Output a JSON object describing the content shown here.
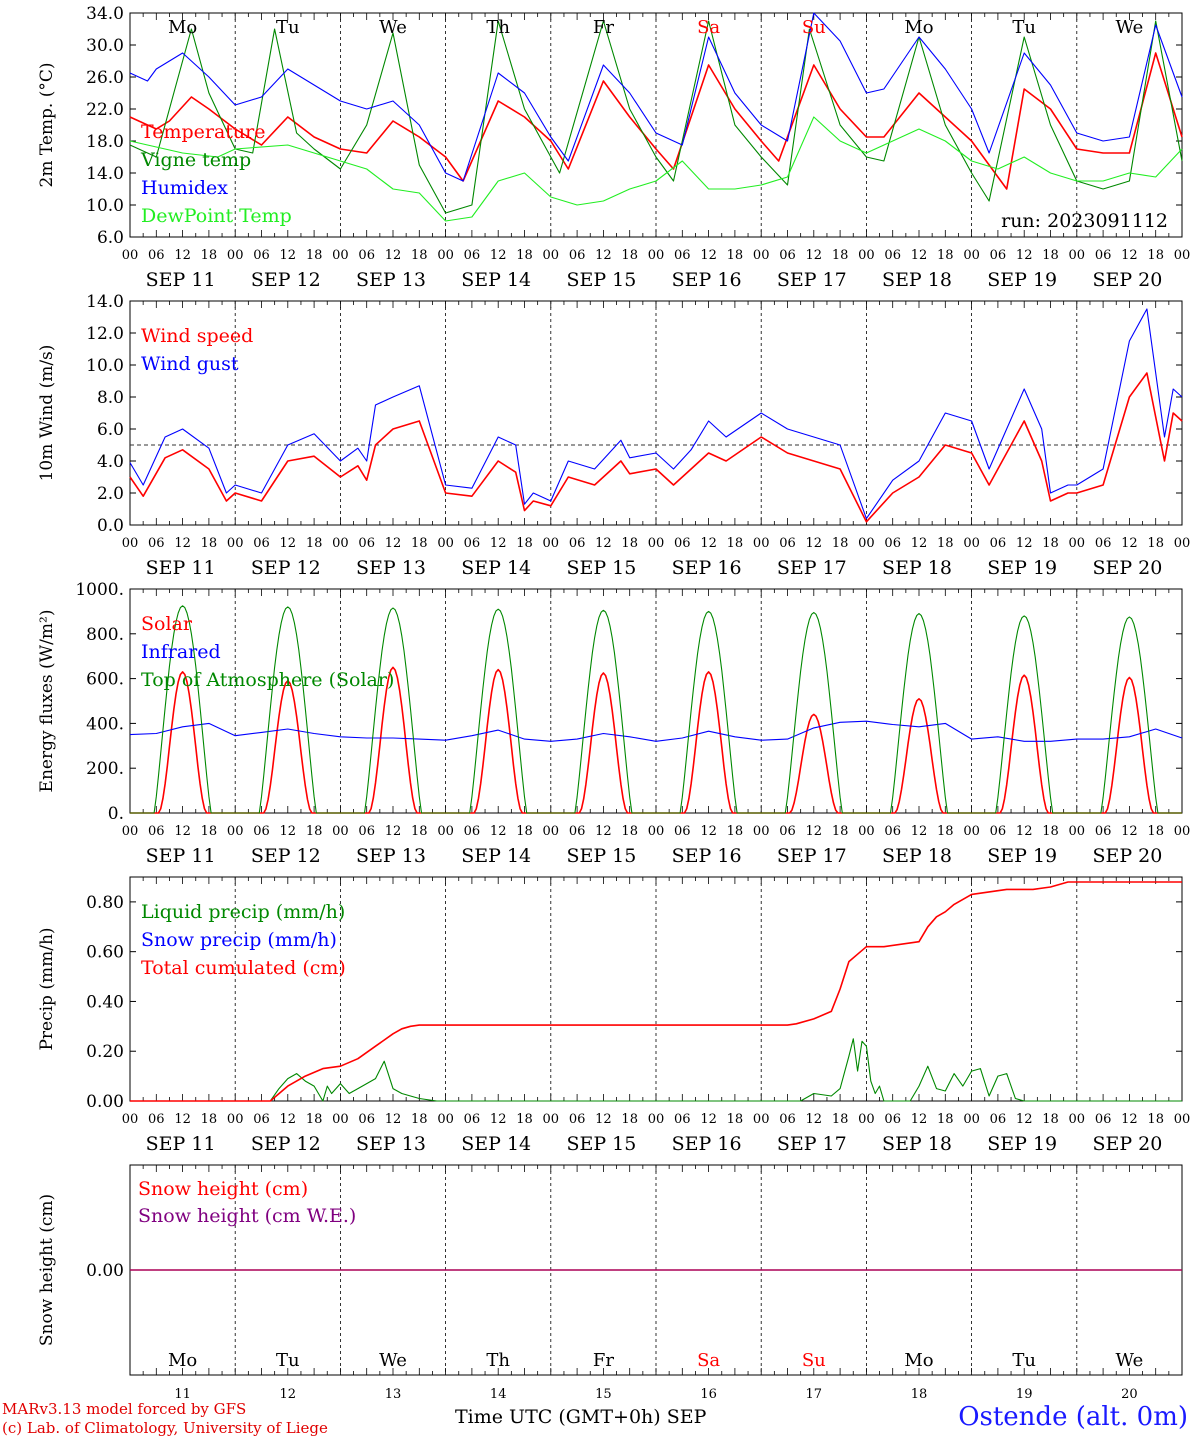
{
  "credits": {
    "line1": "MARv3.13 model forced by GFS",
    "line2": "(c) Lab. of Climatology, University of Liege"
  },
  "x_axis_title": "Time UTC (GMT+0h) SEP",
  "station": "Ostende (alt. 0m)",
  "run_label": "run: 2023091112",
  "days": [
    "11",
    "12",
    "13",
    "14",
    "15",
    "16",
    "17",
    "18",
    "19",
    "20"
  ],
  "weekdays": [
    "Mo",
    "Tu",
    "We",
    "Th",
    "Fr",
    "Sa",
    "Su",
    "Mo",
    "Tu",
    "We"
  ],
  "weekend_flags": [
    false,
    false,
    false,
    false,
    false,
    true,
    true,
    false,
    false,
    false
  ],
  "date_labels": [
    "SEP 11",
    "SEP 12",
    "SEP 13",
    "SEP 14",
    "SEP 15",
    "SEP 16",
    "SEP 17",
    "SEP 18",
    "SEP 19",
    "SEP 20"
  ],
  "hour_ticks": [
    "00",
    "06",
    "12",
    "18"
  ],
  "last_hour_tick": "00",
  "colors": {
    "red": "#ff0000",
    "green": "#008800",
    "blue": "#0000ff",
    "lightgreen": "#22ee22",
    "purple": "#800080",
    "weekend": "#ff0000"
  },
  "chart_data": [
    {
      "id": "temp",
      "type": "line",
      "ylabel": "2m Temp. (°C)",
      "ylim": [
        6.0,
        34.0
      ],
      "yticks": [
        "6.0",
        "10.0",
        "14.0",
        "18.0",
        "22.0",
        "26.0",
        "30.0",
        "34.0"
      ],
      "ytick_values": [
        6,
        10,
        14,
        18,
        22,
        26,
        30,
        34
      ],
      "x_unit": "hours since SEP 11 00 UTC",
      "legend": [
        "Temperature",
        "Vigne temp",
        "Humidex",
        "DewPoint Temp"
      ],
      "series": [
        {
          "name": "Temperature",
          "color": "red",
          "x": [
            0,
            6,
            9,
            14,
            18,
            24,
            30,
            36,
            42,
            48,
            54,
            60,
            66,
            72,
            76,
            84,
            90,
            96,
            100,
            108,
            114,
            120,
            124,
            132,
            138,
            144,
            148,
            156,
            162,
            168,
            172,
            180,
            186,
            192,
            200,
            204,
            210,
            216,
            222,
            228,
            234,
            240
          ],
          "y": [
            21,
            19.5,
            20.5,
            23.5,
            22,
            19.5,
            17.5,
            21,
            18.5,
            17,
            16.5,
            20.5,
            18.5,
            16,
            13,
            23,
            21,
            18,
            14.5,
            25.5,
            21,
            17,
            14.5,
            27.5,
            22,
            18,
            15.5,
            27.5,
            22,
            18.5,
            18.5,
            24,
            21,
            18,
            12,
            24.5,
            22,
            17,
            16.5,
            16.5,
            29,
            18.5
          ]
        },
        {
          "name": "Vigne temp",
          "color": "green",
          "x": [
            0,
            6,
            10,
            14,
            18,
            24,
            28,
            33,
            38,
            42,
            48,
            54,
            60,
            66,
            72,
            78,
            84,
            90,
            96,
            98,
            108,
            114,
            120,
            124,
            132,
            138,
            144,
            150,
            155,
            162,
            168,
            172,
            180,
            186,
            192,
            196,
            204,
            210,
            216,
            222,
            228,
            234,
            240
          ],
          "y": [
            17.5,
            16,
            24,
            32,
            24,
            17,
            16.5,
            32,
            19,
            17,
            14.5,
            20,
            31.5,
            15,
            9,
            10,
            33,
            22,
            16,
            14,
            33,
            22,
            16,
            13,
            33,
            20,
            16,
            12.5,
            32,
            20,
            16,
            15.5,
            31,
            20,
            14,
            10.5,
            31,
            20,
            13,
            12,
            13,
            33,
            15.5
          ]
        },
        {
          "name": "Humidex",
          "color": "blue",
          "x": [
            0,
            4,
            6,
            12,
            18,
            24,
            30,
            36,
            42,
            48,
            54,
            60,
            66,
            72,
            76,
            84,
            90,
            96,
            100,
            108,
            114,
            120,
            126,
            132,
            138,
            144,
            150,
            156,
            162,
            168,
            172,
            180,
            186,
            192,
            196,
            204,
            210,
            216,
            222,
            228,
            234,
            240
          ],
          "y": [
            26.5,
            25.5,
            27,
            29,
            26,
            22.5,
            23.5,
            27,
            25,
            23,
            22,
            23,
            20,
            14,
            13,
            26.5,
            24,
            18.5,
            15.5,
            27.5,
            24,
            19,
            17.5,
            31,
            24,
            20,
            18,
            34,
            30.5,
            24,
            24.5,
            31,
            27,
            22,
            16.5,
            29,
            25,
            19,
            18,
            18.5,
            32.5,
            23.5
          ]
        },
        {
          "name": "DewPoint Temp",
          "color": "lightgreen",
          "x": [
            0,
            12,
            20,
            24,
            36,
            42,
            48,
            54,
            60,
            66,
            72,
            78,
            84,
            90,
            96,
            102,
            108,
            114,
            120,
            126,
            132,
            138,
            144,
            150,
            156,
            162,
            168,
            174,
            180,
            186,
            192,
            198,
            204,
            210,
            216,
            222,
            228,
            234,
            240
          ],
          "y": [
            18,
            16.5,
            16,
            17,
            17.5,
            16.5,
            15.5,
            14.5,
            12,
            11.5,
            8,
            8.5,
            13,
            14,
            11,
            10,
            10.5,
            12,
            13,
            15.5,
            12,
            12,
            12.5,
            13.5,
            21,
            18,
            16.5,
            18,
            19.5,
            18,
            15.5,
            14.5,
            16,
            14,
            13,
            13,
            14,
            13.5,
            17
          ]
        }
      ]
    },
    {
      "id": "wind",
      "type": "line",
      "ylabel": "10m Wind (m/s)",
      "ylim": [
        0.0,
        14.0
      ],
      "yticks": [
        "0.0",
        "2.0",
        "4.0",
        "6.0",
        "8.0",
        "10.0",
        "12.0",
        "14.0"
      ],
      "ytick_values": [
        0,
        2,
        4,
        6,
        8,
        10,
        12,
        14
      ],
      "reference_line": 5,
      "x_unit": "hours since SEP 11 00 UTC",
      "legend": [
        "Wind speed",
        "Wind gust"
      ],
      "series": [
        {
          "name": "Wind speed",
          "color": "red",
          "x": [
            0,
            3,
            8,
            12,
            18,
            22,
            24,
            30,
            36,
            42,
            48,
            52,
            54,
            56,
            60,
            66,
            72,
            78,
            84,
            88,
            90,
            92,
            96,
            100,
            106,
            112,
            114,
            120,
            124,
            128,
            132,
            136,
            144,
            150,
            156,
            162,
            168,
            174,
            180,
            186,
            192,
            196,
            204,
            208,
            210,
            214,
            216,
            222,
            228,
            232,
            236,
            238,
            240
          ],
          "y": [
            3,
            1.8,
            4.2,
            4.7,
            3.5,
            1.5,
            2,
            1.5,
            4,
            4.3,
            3,
            3.7,
            2.8,
            5,
            6,
            6.5,
            2,
            1.8,
            4,
            3.3,
            0.9,
            1.5,
            1.2,
            3,
            2.5,
            4,
            3.2,
            3.5,
            2.5,
            3.5,
            4.5,
            4,
            5.5,
            4.5,
            4,
            3.5,
            0.2,
            2,
            3,
            5,
            4.5,
            2.5,
            6.5,
            4,
            1.5,
            2,
            2,
            2.5,
            8,
            9.5,
            4,
            7,
            6.5
          ]
        },
        {
          "name": "Wind gust",
          "color": "blue",
          "x": [
            0,
            3,
            8,
            12,
            18,
            22,
            24,
            30,
            36,
            42,
            48,
            52,
            54,
            56,
            60,
            66,
            72,
            78,
            84,
            88,
            90,
            92,
            96,
            100,
            106,
            112,
            114,
            120,
            124,
            128,
            132,
            136,
            144,
            150,
            156,
            162,
            168,
            174,
            180,
            186,
            192,
            196,
            204,
            208,
            210,
            214,
            216,
            222,
            228,
            232,
            236,
            238,
            240
          ],
          "y": [
            3.9,
            2.5,
            5.5,
            6,
            4.8,
            2,
            2.5,
            2,
            5,
            5.7,
            4,
            4.8,
            4,
            7.5,
            8,
            8.7,
            2.5,
            2.3,
            5.5,
            5,
            1.3,
            2,
            1.5,
            4,
            3.5,
            5.3,
            4.2,
            4.5,
            3.5,
            4.7,
            6.5,
            5.5,
            7,
            6,
            5.5,
            5,
            0.4,
            2.8,
            4,
            7,
            6.5,
            3.5,
            8.5,
            6,
            2,
            2.5,
            2.5,
            3.5,
            11.5,
            13.5,
            5.5,
            8.5,
            8
          ]
        }
      ]
    },
    {
      "id": "energy",
      "type": "line",
      "ylabel": "Energy fluxes (W/m²)",
      "ylim": [
        0,
        1000
      ],
      "yticks": [
        "0.",
        "200.",
        "400.",
        "600.",
        "800.",
        "1000."
      ],
      "ytick_values": [
        0,
        200,
        400,
        600,
        800,
        1000
      ],
      "x_unit": "hours since SEP 11 00 UTC",
      "legend": [
        "Solar",
        "Infrared",
        "Top of Atmosphere (Solar)"
      ],
      "series": [
        {
          "name": "Solar",
          "color": "red",
          "daily_peaks": [
            630,
            590,
            650,
            640,
            625,
            630,
            440,
            510,
            615,
            605
          ]
        },
        {
          "name": "Infrared",
          "color": "blue",
          "x": [
            0,
            6,
            12,
            18,
            24,
            30,
            36,
            42,
            48,
            54,
            60,
            66,
            72,
            78,
            84,
            90,
            96,
            102,
            108,
            114,
            120,
            126,
            132,
            138,
            144,
            150,
            156,
            162,
            168,
            174,
            180,
            186,
            192,
            198,
            204,
            210,
            216,
            222,
            228,
            234,
            240
          ],
          "y": [
            350,
            355,
            385,
            400,
            345,
            360,
            375,
            355,
            340,
            335,
            335,
            330,
            325,
            345,
            370,
            330,
            320,
            330,
            355,
            340,
            320,
            335,
            365,
            340,
            325,
            330,
            380,
            405,
            410,
            395,
            385,
            400,
            330,
            340,
            320,
            320,
            330,
            330,
            340,
            375,
            335
          ]
        },
        {
          "name": "Top of Atmosphere (Solar)",
          "color": "green",
          "daily_peaks": [
            925,
            920,
            915,
            910,
            905,
            900,
            895,
            890,
            880,
            875
          ]
        }
      ]
    },
    {
      "id": "precip",
      "type": "line",
      "ylabel": "Precip (mm/h)",
      "ylim": [
        0,
        0.9
      ],
      "yticks": [
        "0.00",
        "0.20",
        "0.40",
        "0.60",
        "0.80"
      ],
      "ytick_values": [
        0,
        0.2,
        0.4,
        0.6,
        0.8
      ],
      "x_unit": "hours since SEP 11 00 UTC",
      "legend": [
        "Liquid precip (mm/h)",
        "Snow precip (mm/h)",
        "Total cumulated (cm)"
      ],
      "series": [
        {
          "name": "Liquid precip (mm/h)",
          "color": "green",
          "x": [
            0,
            32,
            34,
            36,
            38,
            40,
            42,
            44,
            45,
            46,
            48,
            50,
            52,
            54,
            56,
            58,
            60,
            62,
            64,
            66,
            70,
            153,
            156,
            160,
            162,
            164,
            165,
            166,
            167,
            168,
            169,
            170,
            171,
            172,
            178,
            180,
            182,
            184,
            186,
            188,
            190,
            192,
            194,
            196,
            198,
            200,
            202,
            204,
            206,
            208,
            210,
            212,
            240
          ],
          "y": [
            0,
            0,
            0.05,
            0.09,
            0.11,
            0.08,
            0.06,
            0,
            0.06,
            0.03,
            0.07,
            0.03,
            0.05,
            0.07,
            0.09,
            0.16,
            0.05,
            0.03,
            0.02,
            0.01,
            0,
            0,
            0.03,
            0.02,
            0.05,
            0.18,
            0.25,
            0.12,
            0.24,
            0.22,
            0.08,
            0.03,
            0.06,
            0,
            0,
            0.06,
            0.14,
            0.05,
            0.04,
            0.11,
            0.06,
            0.12,
            0.13,
            0.02,
            0.1,
            0.11,
            0.01,
            0,
            0,
            0,
            0,
            0,
            0
          ]
        },
        {
          "name": "Total cumulated (cm)",
          "color": "red",
          "x": [
            0,
            32,
            36,
            40,
            44,
            48,
            52,
            56,
            60,
            62,
            64,
            66,
            68,
            72,
            150,
            152,
            156,
            160,
            162,
            164,
            166,
            168,
            170,
            172,
            180,
            182,
            184,
            186,
            188,
            192,
            200,
            204,
            206,
            210,
            214,
            240
          ],
          "y": [
            0,
            0,
            0.06,
            0.1,
            0.13,
            0.14,
            0.17,
            0.22,
            0.27,
            0.29,
            0.3,
            0.305,
            0.305,
            0.305,
            0.305,
            0.31,
            0.33,
            0.36,
            0.45,
            0.56,
            0.59,
            0.62,
            0.62,
            0.62,
            0.64,
            0.7,
            0.74,
            0.76,
            0.79,
            0.83,
            0.85,
            0.85,
            0.85,
            0.86,
            0.88,
            0.88
          ]
        }
      ]
    },
    {
      "id": "snow",
      "type": "line",
      "ylabel": "Snow height (cm)",
      "ylim": [
        -1,
        1
      ],
      "yticks": [
        "0.00"
      ],
      "ytick_values": [
        0
      ],
      "x_unit": "hours since SEP 11 00 UTC",
      "legend": [
        "Snow height (cm)",
        "Snow height (cm W.E.)"
      ],
      "series": [
        {
          "name": "Snow height (cm)",
          "color": "red",
          "x": [
            0,
            240
          ],
          "y": [
            0,
            0
          ]
        },
        {
          "name": "Snow height (cm W.E.)",
          "color": "purple",
          "x": [
            0,
            240
          ],
          "y": [
            0,
            0
          ]
        }
      ]
    }
  ]
}
